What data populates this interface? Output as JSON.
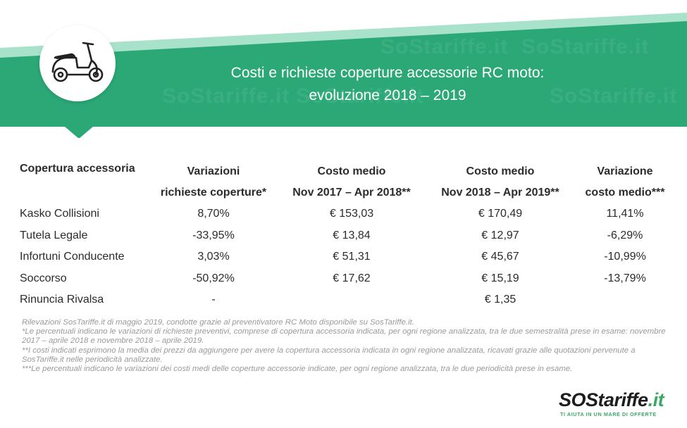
{
  "header": {
    "title_line1": "Costi e richieste coperture accessorie RC moto:",
    "title_line2": "evoluzione 2018 – 2019",
    "watermark_text": "SoStariffe.it",
    "band_color": "#2ca877",
    "stripe_color": "#8fd8bc",
    "icon": "scooter-icon"
  },
  "table": {
    "headers": [
      [
        "Copertura accessoria",
        ""
      ],
      [
        "Variazioni",
        "richieste coperture*"
      ],
      [
        "Costo medio",
        "Nov 2017 – Apr 2018**"
      ],
      [
        "Costo medio",
        "Nov 2018 – Apr 2019**"
      ],
      [
        "Variazione",
        "costo medio***"
      ]
    ],
    "rows": [
      [
        "Kasko Collisioni",
        "8,70%",
        "€ 153,03",
        "€ 170,49",
        "11,41%"
      ],
      [
        "Tutela Legale",
        "-33,95%",
        "€ 13,84",
        "€ 12,97",
        "-6,29%"
      ],
      [
        "Infortuni Conducente",
        "3,03%",
        "€ 51,31",
        "€ 45,67",
        "-10,99%"
      ],
      [
        "Soccorso",
        "-50,92%",
        "€ 17,62",
        "€ 15,19",
        "-13,79%"
      ],
      [
        "Rinuncia Rivalsa",
        "-",
        "",
        "€ 1,35",
        ""
      ]
    ]
  },
  "notes": [
    "Rilevazioni SosTariffe.it di maggio 2019, condotte grazie al preventivatore RC Moto disponibile su SosTariffe.it.",
    "*Le percentuali indicano le variazioni di richieste preventivi, comprese di copertura accessoria indicata, per ogni regione analizzata, tra le due semestralità prese in esame: novembre 2017 – aprile 2018 e novembre 2018 – aprile 2019.",
    "**I costi  indicati esprimono la media dei prezzi da aggiungere per avere la copertura accessoria indicata in ogni regione analizzata, ricavati grazie alle quotazioni pervenute a SosTariffe.it nelle periodicità analizzate.",
    "***Le percentuali indicano le variazioni dei costi medi delle coperture accessorie indicate, per ogni regione analizzata, tra le due periodicità prese in esame."
  ],
  "logo": {
    "part1": "SOS",
    "part2": "tariffe",
    "part3": ".it",
    "tagline": "TI AIUTA IN UN MARE DI OFFERTE",
    "dark_color": "#1d1d1d",
    "green_color": "#3aa865"
  }
}
